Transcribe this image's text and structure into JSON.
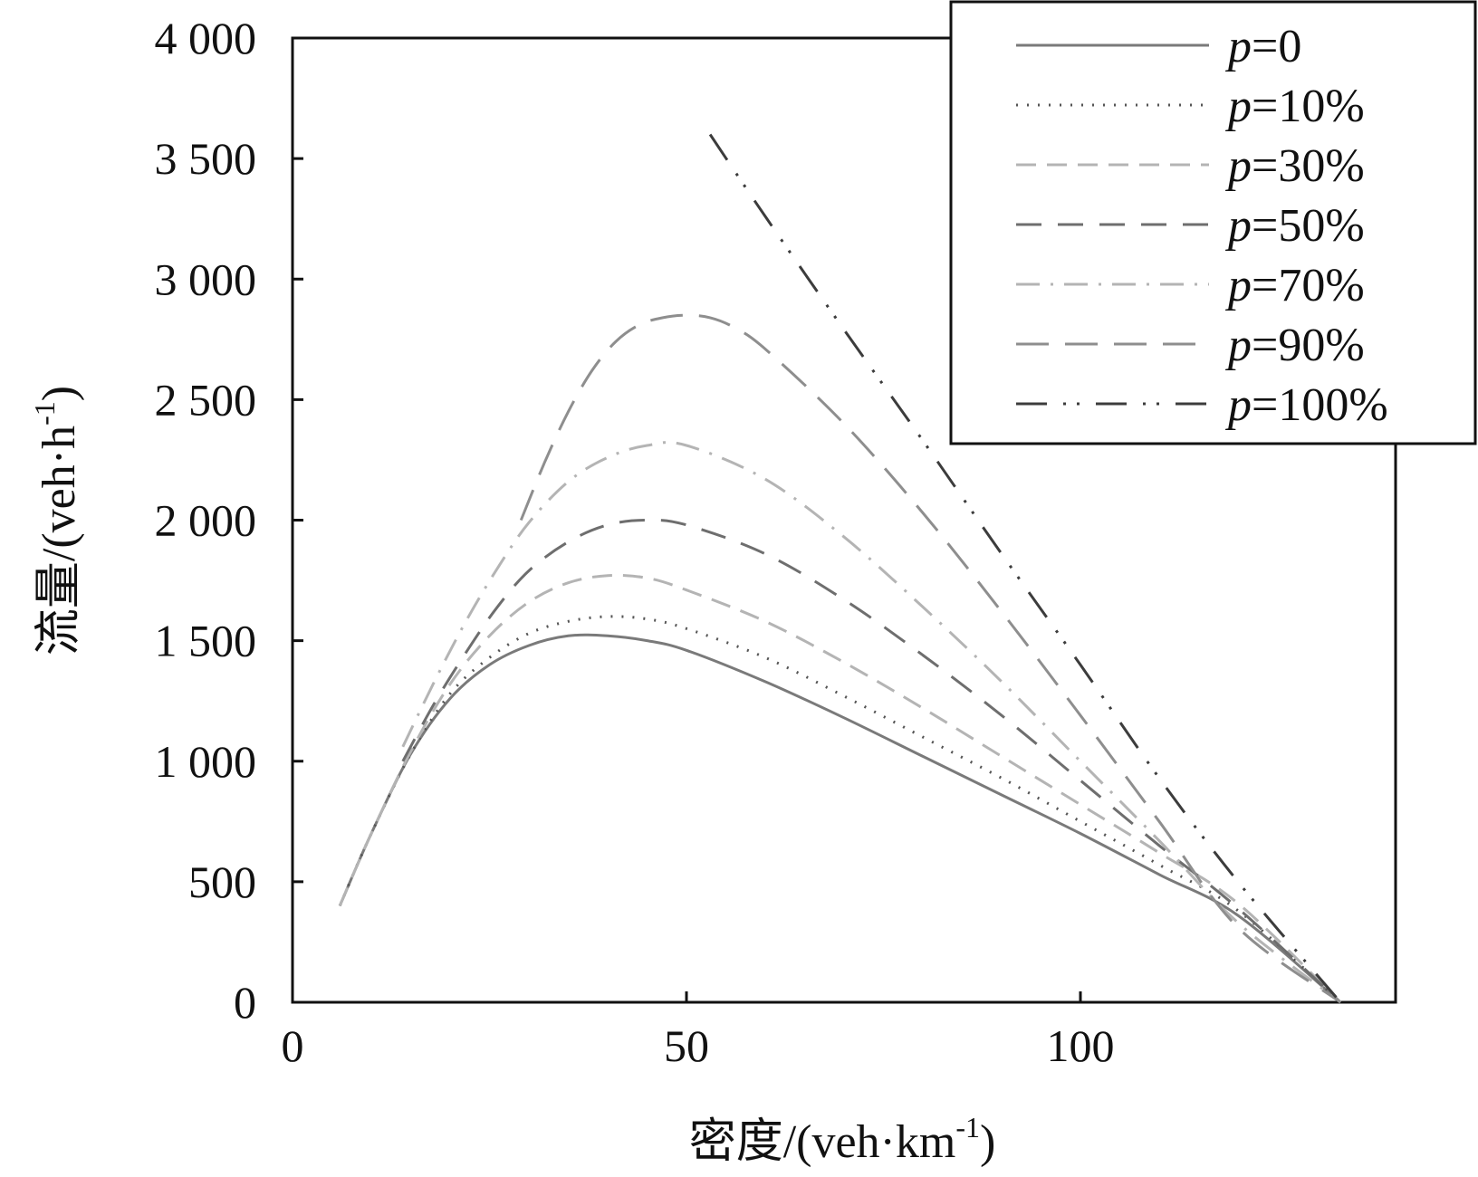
{
  "chart_data": {
    "type": "line",
    "title": "",
    "xlabel": "密度/(veh·km",
    "xlabel_sup": "-1",
    "xlabel_close": ")",
    "ylabel": "流量/(veh·h",
    "ylabel_sup": "-1",
    "ylabel_close": ")",
    "xlim": [
      0,
      140
    ],
    "ylim": [
      0,
      4000
    ],
    "xticks": [
      0,
      50,
      100
    ],
    "xtick_labels": [
      "0",
      "50",
      "100"
    ],
    "yticks": [
      0,
      500,
      1000,
      1500,
      2000,
      2500,
      3000,
      3500,
      4000
    ],
    "ytick_labels": [
      "0",
      "500",
      "1 000",
      "1 500",
      "2 000",
      "2 500",
      "3 000",
      "3 500",
      "4 000"
    ],
    "grid": false,
    "legend_position": "top-right",
    "series": [
      {
        "name": "p=0",
        "prefix": "p",
        "suffix": "=0",
        "color": "#7a7a7a",
        "dash": "",
        "x": [
          6,
          10,
          15,
          20,
          25,
          30,
          35,
          40,
          45,
          50,
          60,
          70,
          80,
          90,
          100,
          110,
          120,
          133
        ],
        "y": [
          400,
          700,
          1030,
          1260,
          1400,
          1480,
          1520,
          1520,
          1500,
          1460,
          1330,
          1180,
          1020,
          860,
          700,
          530,
          360,
          0
        ]
      },
      {
        "name": "p=10%",
        "prefix": "p",
        "suffix": "=10%",
        "color": "#555555",
        "dash": "2 10",
        "x": [
          6,
          10,
          15,
          20,
          25,
          30,
          35,
          40,
          45,
          50,
          60,
          70,
          80,
          90,
          100,
          110,
          120,
          133
        ],
        "y": [
          400,
          700,
          1030,
          1280,
          1430,
          1530,
          1580,
          1600,
          1590,
          1550,
          1430,
          1270,
          1100,
          930,
          750,
          570,
          380,
          0
        ]
      },
      {
        "name": "p=30%",
        "prefix": "p",
        "suffix": "=30%",
        "color": "#b4b4b4",
        "dash": "22 12",
        "x": [
          6,
          10,
          15,
          20,
          25,
          30,
          35,
          40,
          45,
          50,
          60,
          70,
          80,
          90,
          100,
          110,
          120,
          133
        ],
        "y": [
          400,
          700,
          1040,
          1320,
          1520,
          1660,
          1740,
          1770,
          1760,
          1710,
          1580,
          1410,
          1220,
          1020,
          820,
          620,
          410,
          0
        ]
      },
      {
        "name": "p=50%",
        "prefix": "p",
        "suffix": "=50%",
        "color": "#6e6e6e",
        "dash": "28 18",
        "x": [
          14,
          18,
          22,
          26,
          30,
          35,
          40,
          45,
          50,
          60,
          70,
          80,
          90,
          100,
          110,
          120,
          133
        ],
        "y": [
          1000,
          1240,
          1450,
          1640,
          1790,
          1910,
          1980,
          2000,
          1980,
          1860,
          1670,
          1440,
          1190,
          920,
          650,
          390,
          0
        ]
      },
      {
        "name": "p=70%",
        "prefix": "p",
        "suffix": "=70%",
        "color": "#b4b4b4",
        "dash": "26 12 3 12",
        "x": [
          14,
          18,
          22,
          26,
          30,
          35,
          40,
          45,
          50,
          60,
          70,
          80,
          90,
          100,
          110,
          120,
          133
        ],
        "y": [
          1060,
          1330,
          1580,
          1800,
          1990,
          2160,
          2260,
          2310,
          2310,
          2170,
          1930,
          1640,
          1330,
          1000,
          670,
          330,
          0
        ]
      },
      {
        "name": "p=90%",
        "prefix": "p",
        "suffix": "=90%",
        "color": "#8e8e8e",
        "dash": "36 18",
        "x": [
          29,
          32,
          35,
          38,
          41,
          44,
          47,
          50,
          53,
          56,
          60,
          70,
          80,
          90,
          100,
          110,
          120,
          133
        ],
        "y": [
          2000,
          2240,
          2450,
          2620,
          2740,
          2810,
          2840,
          2850,
          2840,
          2800,
          2710,
          2400,
          2030,
          1620,
          1190,
          750,
          310,
          0
        ]
      },
      {
        "name": "p=100%",
        "prefix": "p",
        "suffix": "=100%",
        "color": "#3c3c3c",
        "dash": "34 18 3 12 3 18",
        "x": [
          53,
          60,
          70,
          80,
          90,
          100,
          110,
          120,
          133
        ],
        "y": [
          3600,
          3260,
          2790,
          2330,
          1860,
          1400,
          930,
          500,
          0
        ]
      }
    ]
  }
}
